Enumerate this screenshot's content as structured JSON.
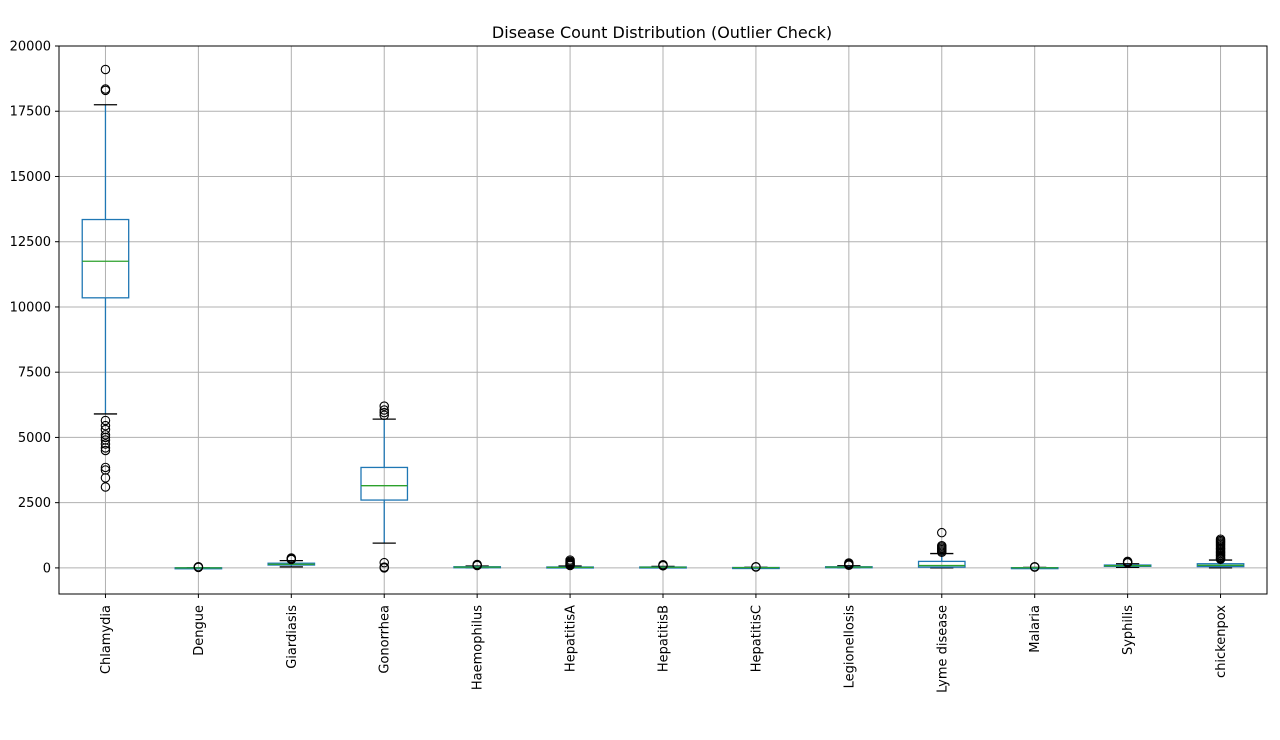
{
  "chart_data": {
    "type": "box",
    "title": "Disease Count Distribution (Outlier Check)",
    "xlabel": "",
    "ylabel": "",
    "ylim": [
      -1000,
      20000
    ],
    "yticks": [
      0,
      2500,
      5000,
      7500,
      10000,
      12500,
      15000,
      17500,
      20000
    ],
    "grid": true,
    "colors": {
      "box": "#1f77b4",
      "median": "#2ca02c",
      "whisker_cap": "#000000",
      "flier": "#000000",
      "grid": "#b0b0b0"
    },
    "categories": [
      "Chlamydia",
      "Dengue",
      "Giardiasis",
      "Gonorrhea",
      "Haemophilus",
      "HepatitisA",
      "HepatitisB",
      "HepatitisC",
      "Legionellosis",
      "Lyme disease",
      "Malaria",
      "Syphilis",
      "chickenpox"
    ],
    "boxes": [
      {
        "name": "Chlamydia",
        "whislo": 5900,
        "q1": 10350,
        "med": 11750,
        "q3": 13350,
        "whishi": 17750,
        "fliers": [
          3100,
          3450,
          3750,
          3850,
          4500,
          4600,
          4750,
          4900,
          5000,
          5100,
          5300,
          5450,
          5650,
          18300,
          18350,
          19100
        ]
      },
      {
        "name": "Dengue",
        "whislo": 0,
        "q1": 0,
        "med": 2,
        "q3": 5,
        "whishi": 12,
        "fliers": [
          20,
          30,
          45
        ]
      },
      {
        "name": "Giardiasis",
        "whislo": 40,
        "q1": 110,
        "med": 140,
        "q3": 180,
        "whishi": 280,
        "fliers": [
          320,
          350,
          380
        ]
      },
      {
        "name": "Gonorrhea",
        "whislo": 950,
        "q1": 2600,
        "med": 3150,
        "q3": 3850,
        "whishi": 5700,
        "fliers": [
          0,
          30,
          200,
          5850,
          5950,
          6050,
          6200
        ]
      },
      {
        "name": "Haemophilus",
        "whislo": 5,
        "q1": 20,
        "med": 30,
        "q3": 45,
        "whishi": 70,
        "fliers": [
          90,
          110,
          130
        ]
      },
      {
        "name": "HepatitisA",
        "whislo": 0,
        "q1": 10,
        "med": 20,
        "q3": 35,
        "whishi": 70,
        "fliers": [
          90,
          120,
          150,
          180,
          210,
          250,
          300
        ]
      },
      {
        "name": "HepatitisB",
        "whislo": 5,
        "q1": 15,
        "med": 25,
        "q3": 35,
        "whishi": 60,
        "fliers": [
          80,
          100,
          120
        ]
      },
      {
        "name": "HepatitisC",
        "whislo": 0,
        "q1": 5,
        "med": 10,
        "q3": 15,
        "whishi": 25,
        "fliers": [
          35,
          45
        ]
      },
      {
        "name": "Legionellosis",
        "whislo": 5,
        "q1": 20,
        "med": 30,
        "q3": 45,
        "whishi": 80,
        "fliers": [
          100,
          130,
          160,
          190
        ]
      },
      {
        "name": "Lyme disease",
        "whislo": 0,
        "q1": 30,
        "med": 90,
        "q3": 250,
        "whishi": 550,
        "fliers": [
          600,
          650,
          700,
          750,
          800,
          850,
          1350
        ]
      },
      {
        "name": "Malaria",
        "whislo": 0,
        "q1": 2,
        "med": 5,
        "q3": 10,
        "whishi": 20,
        "fliers": [
          30,
          45
        ]
      },
      {
        "name": "Syphilis",
        "whislo": 20,
        "q1": 60,
        "med": 85,
        "q3": 110,
        "whishi": 160,
        "fliers": [
          190,
          220,
          250
        ]
      },
      {
        "name": "chickenpox",
        "whislo": 0,
        "q1": 50,
        "med": 100,
        "q3": 160,
        "whishi": 300,
        "fliers": [
          330,
          360,
          400,
          450,
          500,
          550,
          600,
          650,
          700,
          750,
          800,
          850,
          900,
          950,
          1000,
          1050,
          1100
        ]
      }
    ]
  }
}
